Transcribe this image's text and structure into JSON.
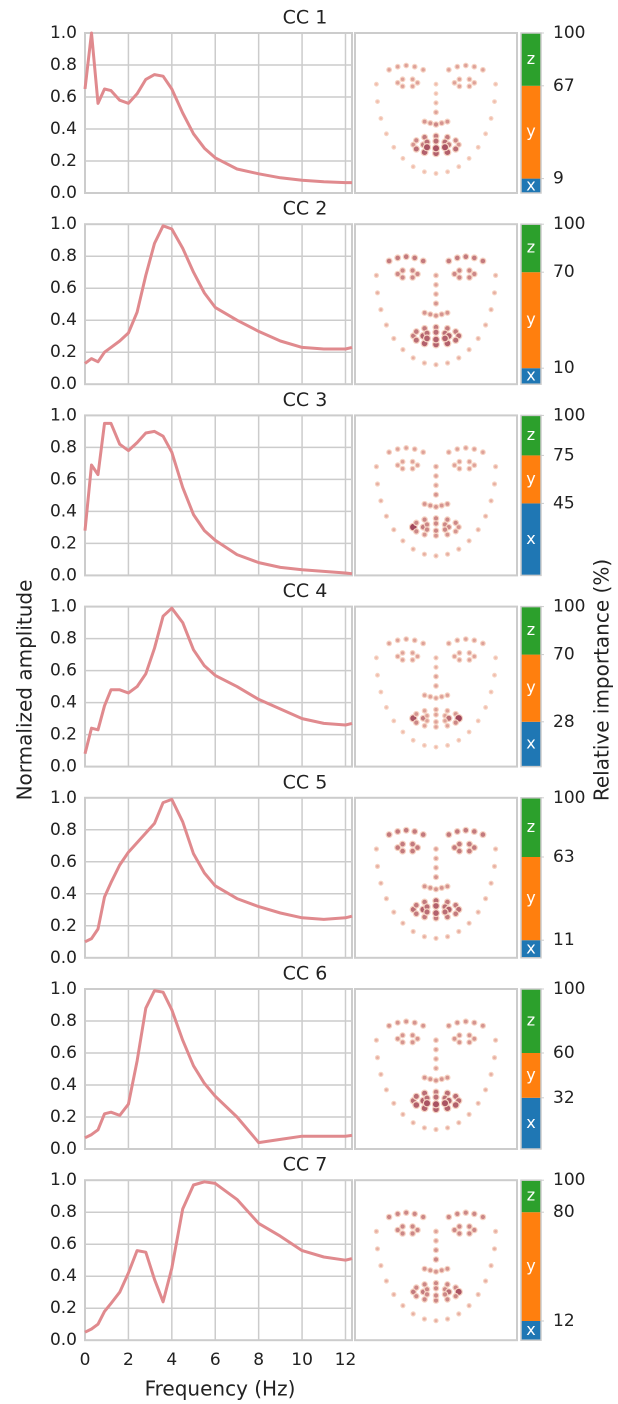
{
  "figure": {
    "ylabel": "Normalized amplitude",
    "xlabel": "Frequency (Hz)",
    "importance_label": "Relative importance (%)"
  },
  "chart_data": [
    {
      "type": "line",
      "title": "CC 1",
      "x": [
        0,
        0.3,
        0.6,
        0.9,
        1.2,
        1.6,
        2,
        2.4,
        2.8,
        3.2,
        3.6,
        4,
        4.5,
        5,
        5.5,
        6,
        7,
        8,
        9,
        10,
        11,
        12,
        12.3
      ],
      "values": [
        0.65,
        1.0,
        0.56,
        0.65,
        0.64,
        0.58,
        0.56,
        0.62,
        0.71,
        0.74,
        0.73,
        0.65,
        0.5,
        0.37,
        0.28,
        0.22,
        0.15,
        0.12,
        0.095,
        0.08,
        0.07,
        0.065,
        0.065
      ],
      "color": "#e08a8e",
      "xlim": [
        0,
        12.3
      ],
      "xticks": [
        0,
        2,
        4,
        6,
        8,
        10,
        12
      ],
      "ylim": [
        0,
        1
      ],
      "yticks": [
        {
          "value": 0,
          "label": "0.0"
        },
        0.2,
        0.4,
        0.6,
        0.8,
        {
          "value": 1,
          "label": "1.0"
        }
      ],
      "grid": true,
      "importance": {
        "categories": [
          "x",
          "y",
          "z"
        ],
        "values": [
          9,
          58,
          33
        ],
        "colors": [
          "#1f77b4",
          "#ff7f0e",
          "#2ca02c"
        ],
        "ticks": [
          9,
          67,
          100
        ],
        "lim": [
          0,
          100
        ]
      },
      "landmark_weights": [
        0.1,
        0.1,
        0.1,
        0.1,
        0.1,
        0.1,
        0.1,
        0.1,
        0.1,
        0.1,
        0.1,
        0.1,
        0.1,
        0.1,
        0.1,
        0.1,
        0.1,
        0.3,
        0.3,
        0.3,
        0.3,
        0.3,
        0.3,
        0.3,
        0.3,
        0.3,
        0.3,
        0.1,
        0.1,
        0.2,
        0.3,
        0.4,
        0.4,
        0.5,
        0.4,
        0.4,
        0.3,
        0.3,
        0.3,
        0.3,
        0.3,
        0.3,
        0.3,
        0.3,
        0.3,
        0.3,
        0.3,
        0.3,
        0.4,
        0.5,
        0.6,
        0.6,
        0.6,
        0.5,
        0.4,
        0.7,
        0.8,
        0.8,
        0.8,
        0.7,
        0.6,
        0.7,
        0.7,
        0.7,
        0.6,
        0.9,
        0.9,
        0.9
      ]
    },
    {
      "type": "line",
      "title": "CC 2",
      "x": [
        0,
        0.3,
        0.6,
        0.9,
        1.2,
        1.6,
        2,
        2.4,
        2.8,
        3.2,
        3.6,
        4,
        4.5,
        5,
        5.5,
        6,
        7,
        8,
        9,
        10,
        11,
        12,
        12.3
      ],
      "values": [
        0.13,
        0.16,
        0.14,
        0.2,
        0.23,
        0.27,
        0.32,
        0.45,
        0.68,
        0.88,
        0.99,
        0.97,
        0.85,
        0.7,
        0.57,
        0.48,
        0.4,
        0.33,
        0.27,
        0.23,
        0.22,
        0.22,
        0.23
      ],
      "color": "#e08a8e",
      "xlim": [
        0,
        12.3
      ],
      "xticks": [
        0,
        2,
        4,
        6,
        8,
        10,
        12
      ],
      "ylim": [
        0,
        1
      ],
      "yticks": [
        {
          "value": 0,
          "label": "0.0"
        },
        0.2,
        0.4,
        0.6,
        0.8,
        {
          "value": 1,
          "label": "1.0"
        }
      ],
      "grid": true,
      "importance": {
        "categories": [
          "x",
          "y",
          "z"
        ],
        "values": [
          10,
          60,
          30
        ],
        "colors": [
          "#1f77b4",
          "#ff7f0e",
          "#2ca02c"
        ],
        "ticks": [
          10,
          70,
          100
        ],
        "lim": [
          0,
          100
        ]
      },
      "landmark_weights": [
        0.2,
        0.2,
        0.2,
        0.2,
        0.2,
        0.2,
        0.2,
        0.2,
        0.2,
        0.2,
        0.2,
        0.2,
        0.2,
        0.2,
        0.2,
        0.2,
        0.2,
        0.6,
        0.6,
        0.6,
        0.6,
        0.6,
        0.6,
        0.6,
        0.6,
        0.6,
        0.6,
        0.3,
        0.3,
        0.3,
        0.4,
        0.4,
        0.4,
        0.4,
        0.4,
        0.4,
        0.5,
        0.5,
        0.5,
        0.5,
        0.5,
        0.5,
        0.5,
        0.5,
        0.5,
        0.5,
        0.5,
        0.5,
        0.6,
        0.6,
        0.6,
        0.6,
        0.6,
        0.6,
        0.7,
        0.7,
        0.8,
        0.8,
        0.8,
        0.7,
        0.8,
        0.7,
        0.7,
        0.7,
        0.8,
        0.8,
        0.8,
        0.8
      ]
    },
    {
      "type": "line",
      "title": "CC 3",
      "x": [
        0,
        0.3,
        0.6,
        0.9,
        1.2,
        1.6,
        2,
        2.4,
        2.8,
        3.2,
        3.6,
        4,
        4.5,
        5,
        5.5,
        6,
        7,
        8,
        9,
        10,
        11,
        12,
        12.3
      ],
      "values": [
        0.28,
        0.69,
        0.63,
        0.95,
        0.95,
        0.82,
        0.78,
        0.83,
        0.89,
        0.9,
        0.87,
        0.77,
        0.55,
        0.38,
        0.28,
        0.22,
        0.13,
        0.08,
        0.05,
        0.035,
        0.025,
        0.015,
        0.01
      ],
      "color": "#e08a8e",
      "xlim": [
        0,
        12.3
      ],
      "xticks": [
        0,
        2,
        4,
        6,
        8,
        10,
        12
      ],
      "ylim": [
        0,
        1
      ],
      "yticks": [
        {
          "value": 0,
          "label": "0.0"
        },
        0.2,
        0.4,
        0.6,
        0.8,
        {
          "value": 1,
          "label": "1.0"
        }
      ],
      "grid": true,
      "importance": {
        "categories": [
          "x",
          "y",
          "z"
        ],
        "values": [
          45,
          30,
          25
        ],
        "colors": [
          "#1f77b4",
          "#ff7f0e",
          "#2ca02c"
        ],
        "ticks": [
          45,
          75,
          100
        ],
        "lim": [
          0,
          100
        ]
      },
      "landmark_weights": [
        0.2,
        0.2,
        0.2,
        0.2,
        0.2,
        0.2,
        0.2,
        0.2,
        0.2,
        0.2,
        0.2,
        0.2,
        0.2,
        0.2,
        0.2,
        0.2,
        0.2,
        0.3,
        0.3,
        0.3,
        0.3,
        0.3,
        0.3,
        0.3,
        0.3,
        0.3,
        0.3,
        0.3,
        0.3,
        0.3,
        0.4,
        0.4,
        0.4,
        0.4,
        0.4,
        0.4,
        0.3,
        0.3,
        0.3,
        0.3,
        0.3,
        0.3,
        0.3,
        0.3,
        0.3,
        0.3,
        0.3,
        0.3,
        1.0,
        0.5,
        0.5,
        0.5,
        0.5,
        0.5,
        0.4,
        0.4,
        0.4,
        0.4,
        0.4,
        0.5,
        0.6,
        0.5,
        0.5,
        0.5,
        0.5,
        0.5,
        0.5,
        0.5
      ]
    },
    {
      "type": "line",
      "title": "CC 4",
      "x": [
        0,
        0.3,
        0.6,
        0.9,
        1.2,
        1.6,
        2,
        2.4,
        2.8,
        3.2,
        3.6,
        4,
        4.5,
        5,
        5.5,
        6,
        7,
        8,
        9,
        10,
        11,
        12,
        12.3
      ],
      "values": [
        0.08,
        0.24,
        0.23,
        0.38,
        0.48,
        0.48,
        0.46,
        0.5,
        0.58,
        0.74,
        0.94,
        0.99,
        0.9,
        0.73,
        0.63,
        0.57,
        0.5,
        0.42,
        0.36,
        0.3,
        0.27,
        0.26,
        0.27
      ],
      "color": "#e08a8e",
      "xlim": [
        0,
        12.3
      ],
      "xticks": [
        0,
        2,
        4,
        6,
        8,
        10,
        12
      ],
      "ylim": [
        0,
        1
      ],
      "yticks": [
        {
          "value": 0,
          "label": "0.0"
        },
        0.2,
        0.4,
        0.6,
        0.8,
        {
          "value": 1,
          "label": "1.0"
        }
      ],
      "grid": true,
      "importance": {
        "categories": [
          "x",
          "y",
          "z"
        ],
        "values": [
          28,
          42,
          30
        ],
        "colors": [
          "#1f77b4",
          "#ff7f0e",
          "#2ca02c"
        ],
        "ticks": [
          28,
          70,
          100
        ],
        "lim": [
          0,
          100
        ]
      },
      "landmark_weights": [
        0.1,
        0.1,
        0.1,
        0.1,
        0.1,
        0.1,
        0.1,
        0.1,
        0.1,
        0.1,
        0.1,
        0.1,
        0.1,
        0.1,
        0.1,
        0.1,
        0.1,
        0.3,
        0.3,
        0.3,
        0.3,
        0.3,
        0.3,
        0.3,
        0.3,
        0.3,
        0.3,
        0.2,
        0.2,
        0.3,
        0.3,
        0.3,
        0.3,
        0.3,
        0.3,
        0.3,
        0.3,
        0.3,
        0.3,
        0.3,
        0.3,
        0.3,
        0.3,
        0.3,
        0.3,
        0.3,
        0.3,
        0.3,
        0.9,
        0.4,
        0.3,
        0.3,
        0.3,
        0.4,
        1.0,
        0.5,
        0.3,
        0.3,
        0.3,
        0.5,
        0.6,
        0.3,
        0.3,
        0.3,
        0.7,
        0.3,
        0.3,
        0.3
      ]
    },
    {
      "type": "line",
      "title": "CC 5",
      "x": [
        0,
        0.3,
        0.6,
        0.9,
        1.2,
        1.6,
        2,
        2.4,
        2.8,
        3.2,
        3.6,
        4,
        4.5,
        5,
        5.5,
        6,
        7,
        8,
        9,
        10,
        11,
        12,
        12.3
      ],
      "values": [
        0.1,
        0.12,
        0.18,
        0.38,
        0.47,
        0.58,
        0.66,
        0.72,
        0.78,
        0.84,
        0.97,
        0.99,
        0.85,
        0.65,
        0.53,
        0.45,
        0.37,
        0.32,
        0.28,
        0.25,
        0.24,
        0.25,
        0.26
      ],
      "color": "#e08a8e",
      "xlim": [
        0,
        12.3
      ],
      "xticks": [
        0,
        2,
        4,
        6,
        8,
        10,
        12
      ],
      "ylim": [
        0,
        1
      ],
      "yticks": [
        {
          "value": 0,
          "label": "0.0"
        },
        0.2,
        0.4,
        0.6,
        0.8,
        {
          "value": 1,
          "label": "1.0"
        }
      ],
      "grid": true,
      "importance": {
        "categories": [
          "x",
          "y",
          "z"
        ],
        "values": [
          11,
          52,
          37
        ],
        "colors": [
          "#1f77b4",
          "#ff7f0e",
          "#2ca02c"
        ],
        "ticks": [
          11,
          63,
          100
        ],
        "lim": [
          0,
          100
        ]
      },
      "landmark_weights": [
        0.2,
        0.2,
        0.2,
        0.2,
        0.2,
        0.2,
        0.2,
        0.2,
        0.2,
        0.2,
        0.2,
        0.2,
        0.2,
        0.2,
        0.2,
        0.2,
        0.2,
        0.6,
        0.6,
        0.6,
        0.6,
        0.6,
        0.6,
        0.6,
        0.6,
        0.6,
        0.6,
        0.3,
        0.3,
        0.3,
        0.4,
        0.4,
        0.4,
        0.4,
        0.4,
        0.4,
        0.6,
        0.6,
        0.6,
        0.6,
        0.6,
        0.6,
        0.6,
        0.6,
        0.6,
        0.6,
        0.6,
        0.6,
        0.7,
        0.6,
        0.6,
        0.7,
        0.6,
        0.6,
        0.7,
        0.6,
        0.6,
        0.6,
        0.6,
        0.6,
        0.8,
        0.7,
        0.8,
        0.7,
        0.8,
        0.7,
        0.8,
        0.7
      ]
    },
    {
      "type": "line",
      "title": "CC 6",
      "x": [
        0,
        0.3,
        0.6,
        0.9,
        1.2,
        1.6,
        2,
        2.4,
        2.8,
        3.2,
        3.6,
        4,
        4.5,
        5,
        5.5,
        6,
        7,
        8,
        9,
        10,
        11,
        12,
        12.3
      ],
      "values": [
        0.07,
        0.09,
        0.12,
        0.22,
        0.23,
        0.21,
        0.28,
        0.55,
        0.88,
        0.99,
        0.98,
        0.87,
        0.68,
        0.52,
        0.41,
        0.33,
        0.2,
        0.04,
        0.06,
        0.08,
        0.08,
        0.08,
        0.085
      ],
      "color": "#e08a8e",
      "xlim": [
        0,
        12.3
      ],
      "xticks": [
        0,
        2,
        4,
        6,
        8,
        10,
        12
      ],
      "ylim": [
        0,
        1
      ],
      "yticks": [
        {
          "value": 0,
          "label": "0.0"
        },
        0.2,
        0.4,
        0.6,
        0.8,
        {
          "value": 1,
          "label": "1.0"
        }
      ],
      "grid": true,
      "importance": {
        "categories": [
          "x",
          "y",
          "z"
        ],
        "values": [
          32,
          28,
          40
        ],
        "colors": [
          "#1f77b4",
          "#ff7f0e",
          "#2ca02c"
        ],
        "ticks": [
          32,
          60,
          100
        ],
        "lim": [
          0,
          100
        ]
      },
      "landmark_weights": [
        0.2,
        0.2,
        0.2,
        0.2,
        0.2,
        0.2,
        0.2,
        0.2,
        0.2,
        0.2,
        0.2,
        0.2,
        0.2,
        0.2,
        0.2,
        0.2,
        0.2,
        0.4,
        0.4,
        0.4,
        0.4,
        0.4,
        0.4,
        0.4,
        0.4,
        0.4,
        0.4,
        0.3,
        0.3,
        0.3,
        0.3,
        0.4,
        0.4,
        0.4,
        0.4,
        0.4,
        0.4,
        0.4,
        0.4,
        0.4,
        0.4,
        0.4,
        0.4,
        0.4,
        0.4,
        0.4,
        0.4,
        0.4,
        0.7,
        0.7,
        0.7,
        0.6,
        0.7,
        0.7,
        0.7,
        0.8,
        0.8,
        0.8,
        0.8,
        0.8,
        0.8,
        0.7,
        0.7,
        0.7,
        0.8,
        0.9,
        0.9,
        0.9
      ]
    },
    {
      "type": "line",
      "title": "CC 7",
      "x": [
        0,
        0.3,
        0.6,
        0.9,
        1.2,
        1.6,
        2,
        2.4,
        2.8,
        3.2,
        3.6,
        4,
        4.5,
        5,
        5.5,
        6,
        7,
        8,
        9,
        10,
        11,
        12,
        12.3
      ],
      "values": [
        0.05,
        0.07,
        0.1,
        0.18,
        0.23,
        0.3,
        0.42,
        0.56,
        0.55,
        0.38,
        0.24,
        0.45,
        0.82,
        0.97,
        0.99,
        0.98,
        0.88,
        0.73,
        0.65,
        0.56,
        0.52,
        0.5,
        0.51
      ],
      "color": "#e08a8e",
      "xlim": [
        0,
        12.3
      ],
      "xticks": [
        0,
        2,
        4,
        6,
        8,
        10,
        12
      ],
      "ylim": [
        0,
        1
      ],
      "yticks": [
        {
          "value": 0,
          "label": "0.0"
        },
        0.2,
        0.4,
        0.6,
        0.8,
        {
          "value": 1,
          "label": "1.0"
        }
      ],
      "grid": true,
      "importance": {
        "categories": [
          "x",
          "y",
          "z"
        ],
        "values": [
          12,
          68,
          20
        ],
        "colors": [
          "#1f77b4",
          "#ff7f0e",
          "#2ca02c"
        ],
        "ticks": [
          12,
          80,
          100
        ],
        "lim": [
          0,
          100
        ]
      },
      "landmark_weights": [
        0.2,
        0.2,
        0.2,
        0.2,
        0.2,
        0.2,
        0.2,
        0.2,
        0.2,
        0.2,
        0.2,
        0.2,
        0.2,
        0.2,
        0.2,
        0.2,
        0.2,
        0.5,
        0.5,
        0.5,
        0.5,
        0.5,
        0.5,
        0.5,
        0.5,
        0.5,
        0.5,
        0.3,
        0.3,
        0.4,
        0.5,
        0.4,
        0.4,
        0.4,
        0.4,
        0.4,
        0.5,
        0.5,
        0.5,
        0.5,
        0.5,
        0.5,
        0.5,
        0.5,
        0.5,
        0.5,
        0.5,
        0.5,
        0.6,
        0.5,
        0.5,
        0.5,
        0.5,
        0.5,
        0.9,
        0.5,
        0.5,
        0.5,
        0.5,
        0.5,
        0.6,
        0.5,
        0.5,
        0.5,
        0.7,
        0.5,
        0.5,
        0.5
      ]
    }
  ]
}
